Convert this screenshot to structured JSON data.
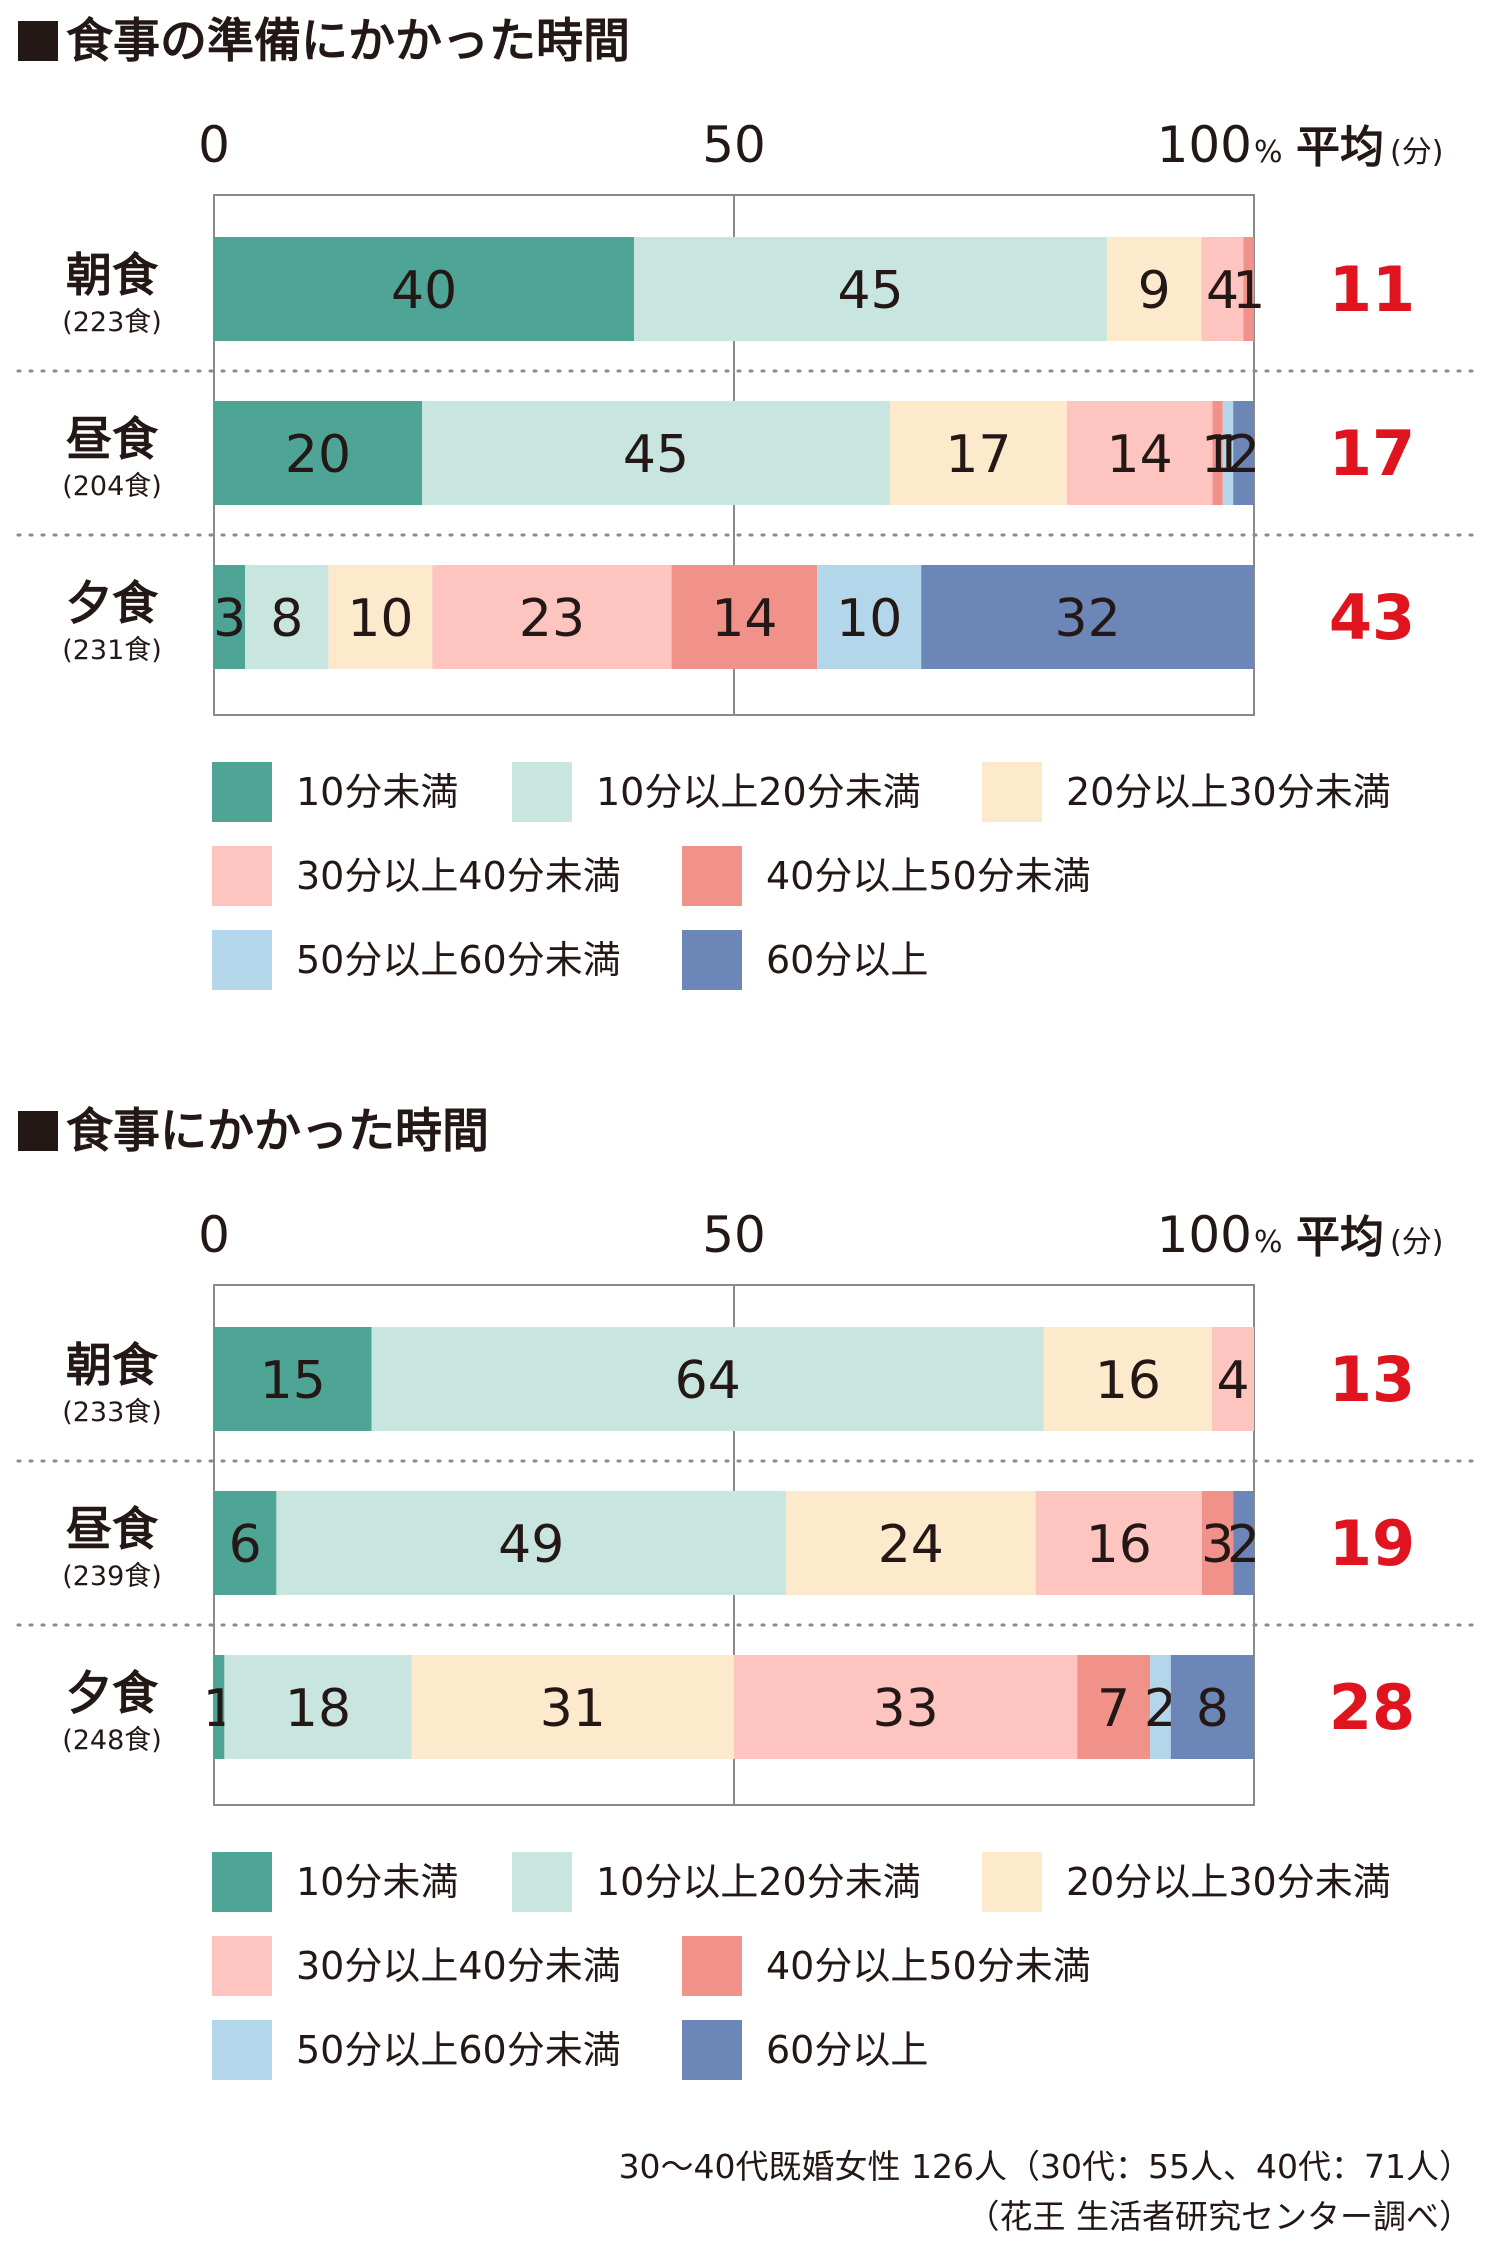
{
  "legend": [
    {
      "label": "10分未満",
      "color": "#4fa595"
    },
    {
      "label": "10分以上20分未満",
      "color": "#c9e5df"
    },
    {
      "label": "20分以上30分未満",
      "color": "#fde9cc"
    },
    {
      "label": "30分以上40分未満",
      "color": "#fdc4c0"
    },
    {
      "label": "40分以上50分未満",
      "color": "#f0918a"
    },
    {
      "label": "50分以上60分未満",
      "color": "#b4d6ea"
    },
    {
      "label": "60分以上",
      "color": "#6c86b8"
    }
  ],
  "average_color": "#e0141e",
  "chart_data": [
    {
      "type": "bar",
      "orientation": "horizontal",
      "stacked": true,
      "title": "食事の準備にかかった時間",
      "x_ticks": [
        "0",
        "50",
        "100"
      ],
      "x_unit": "%",
      "xlim": [
        0,
        100
      ],
      "average_header": "平均",
      "average_unit": "(分)",
      "categories": [
        {
          "label": "朝食",
          "count": "(223食)"
        },
        {
          "label": "昼食",
          "count": "(204食)"
        },
        {
          "label": "夕食",
          "count": "(231食)"
        }
      ],
      "values": [
        [
          40,
          45,
          9,
          4,
          1,
          0,
          0
        ],
        [
          20,
          45,
          17,
          14,
          1,
          1,
          2
        ],
        [
          3,
          8,
          10,
          23,
          14,
          10,
          32
        ]
      ],
      "averages": [
        "11",
        "17",
        "43"
      ]
    },
    {
      "type": "bar",
      "orientation": "horizontal",
      "stacked": true,
      "title": "食事にかかった時間",
      "x_ticks": [
        "0",
        "50",
        "100"
      ],
      "x_unit": "%",
      "xlim": [
        0,
        100
      ],
      "average_header": "平均",
      "average_unit": "(分)",
      "categories": [
        {
          "label": "朝食",
          "count": "(233食)"
        },
        {
          "label": "昼食",
          "count": "(239食)"
        },
        {
          "label": "夕食",
          "count": "(248食)"
        }
      ],
      "values": [
        [
          15,
          64,
          16,
          4,
          0,
          0,
          0
        ],
        [
          6,
          49,
          24,
          16,
          3,
          0,
          2
        ],
        [
          1,
          18,
          31,
          33,
          7,
          2,
          8
        ]
      ],
      "averages": [
        "13",
        "19",
        "28"
      ]
    }
  ],
  "footnote": {
    "line1": "30～40代既婚女性 126人（30代：55人、40代：71人）",
    "line2": "（花王 生活者研究センター調べ）"
  }
}
